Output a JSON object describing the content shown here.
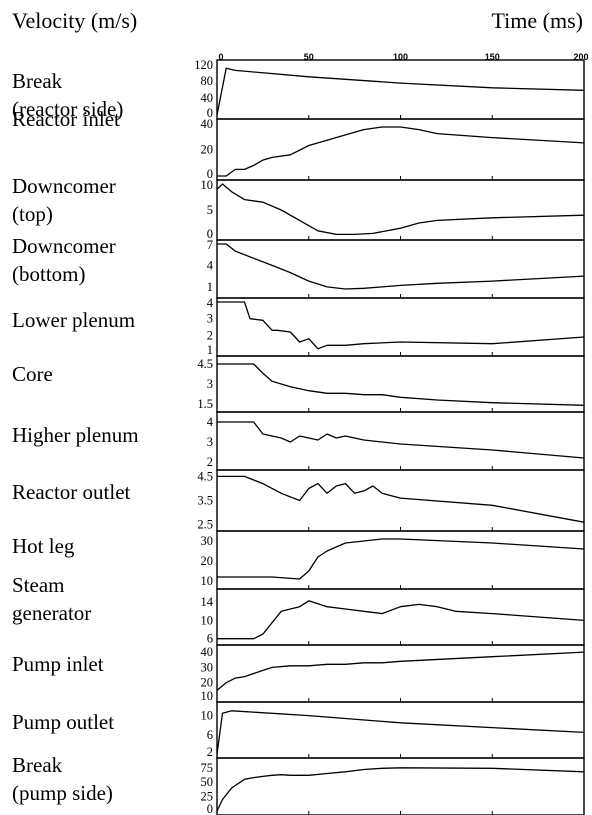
{
  "chart_data": {
    "type": "line",
    "y_header": "Velocity (m/s)",
    "x_header": "Time (ms)",
    "x_ticks": [
      0,
      50,
      100,
      150,
      200
    ],
    "xlim": [
      0,
      200
    ],
    "panels": [
      {
        "label": [
          "Break",
          "(reactor side)"
        ],
        "yticks": [
          "120",
          "80",
          "40",
          "0"
        ],
        "ylim": [
          0,
          120
        ],
        "x": [
          0,
          5,
          10,
          50,
          100,
          150,
          200
        ],
        "y": [
          0,
          110,
          105,
          90,
          75,
          64,
          58
        ]
      },
      {
        "label": [
          "Reactor inlet"
        ],
        "yticks": [
          "40",
          "20",
          "0"
        ],
        "ylim": [
          0,
          40
        ],
        "x": [
          0,
          5,
          10,
          15,
          20,
          25,
          30,
          40,
          50,
          60,
          70,
          80,
          90,
          100,
          110,
          120,
          150,
          200
        ],
        "y": [
          0,
          0,
          5,
          5,
          8,
          12,
          14,
          16,
          23,
          27,
          31,
          35,
          37,
          37,
          35,
          32,
          29,
          25
        ]
      },
      {
        "label": [
          "Downcomer",
          "(top)"
        ],
        "yticks": [
          "10",
          "5",
          "0"
        ],
        "ylim": [
          0,
          10
        ],
        "x": [
          0,
          3,
          8,
          15,
          25,
          35,
          45,
          55,
          65,
          75,
          85,
          100,
          110,
          120,
          150,
          200
        ],
        "y": [
          9,
          10,
          8.5,
          7,
          6.5,
          5,
          3,
          1,
          0.3,
          0.3,
          0.5,
          1.5,
          2.5,
          3,
          3.5,
          4
        ]
      },
      {
        "label": [
          "Downcomer",
          "(bottom)"
        ],
        "yticks": [
          "7",
          "4",
          "1"
        ],
        "ylim": [
          0,
          7
        ],
        "x": [
          0,
          5,
          10,
          20,
          30,
          40,
          50,
          60,
          70,
          80,
          90,
          100,
          120,
          150,
          200
        ],
        "y": [
          7,
          7,
          6,
          5,
          4,
          3,
          1.8,
          1,
          0.7,
          0.8,
          1,
          1.2,
          1.5,
          1.8,
          2.5
        ]
      },
      {
        "label": [
          "Lower plenum"
        ],
        "yticks": [
          "4",
          "3",
          "2",
          "1"
        ],
        "ylim": [
          1,
          4
        ],
        "x": [
          0,
          15,
          18,
          25,
          30,
          33,
          40,
          45,
          50,
          55,
          60,
          70,
          80,
          100,
          150,
          200
        ],
        "y": [
          4,
          4,
          3,
          2.9,
          2.3,
          2.3,
          2.2,
          1.6,
          1.8,
          1.2,
          1.4,
          1.4,
          1.5,
          1.6,
          1.5,
          1.9
        ]
      },
      {
        "label": [
          "Core"
        ],
        "yticks": [
          "4.5",
          "3",
          "1.5"
        ],
        "ylim": [
          1.2,
          4.8
        ],
        "x": [
          0,
          20,
          25,
          30,
          40,
          50,
          60,
          70,
          80,
          90,
          100,
          120,
          150,
          200
        ],
        "y": [
          4.5,
          4.5,
          3.8,
          3.2,
          2.8,
          2.5,
          2.3,
          2.3,
          2.2,
          2.2,
          2.0,
          1.8,
          1.6,
          1.4
        ]
      },
      {
        "label": [
          "Higher plenum"
        ],
        "yticks": [
          "4",
          "3",
          "2"
        ],
        "ylim": [
          1.8,
          4.3
        ],
        "x": [
          0,
          20,
          25,
          35,
          40,
          45,
          50,
          55,
          60,
          65,
          70,
          80,
          100,
          150,
          200
        ],
        "y": [
          4,
          4,
          3.4,
          3.2,
          3.0,
          3.3,
          3.2,
          3.1,
          3.4,
          3.2,
          3.3,
          3.1,
          2.9,
          2.6,
          2.2
        ]
      },
      {
        "label": [
          "Reactor outlet"
        ],
        "yticks": [
          "4.5",
          "3.5",
          "2.5"
        ],
        "ylim": [
          2.4,
          4.6
        ],
        "x": [
          0,
          15,
          25,
          35,
          45,
          50,
          55,
          60,
          65,
          70,
          75,
          80,
          85,
          90,
          95,
          100,
          150,
          200
        ],
        "y": [
          4.5,
          4.5,
          4.2,
          3.8,
          3.5,
          4.0,
          4.2,
          3.8,
          4.1,
          4.2,
          3.8,
          3.9,
          4.1,
          3.8,
          3.7,
          3.6,
          3.3,
          2.6
        ]
      },
      {
        "label": [
          "Hot leg"
        ],
        "yticks": [
          "30",
          "20",
          "10"
        ],
        "ylim": [
          8,
          33
        ],
        "x": [
          0,
          30,
          45,
          50,
          55,
          60,
          70,
          80,
          90,
          95,
          100,
          150,
          200
        ],
        "y": [
          12,
          12,
          11,
          15,
          22,
          25,
          29,
          30,
          31,
          31,
          31,
          29,
          26
        ]
      },
      {
        "label": [
          "Steam",
          "generator"
        ],
        "yticks": [
          "14",
          "10",
          "6"
        ],
        "ylim": [
          5.5,
          16
        ],
        "x": [
          0,
          20,
          25,
          35,
          40,
          45,
          50,
          60,
          70,
          80,
          90,
          100,
          110,
          120,
          130,
          150,
          200
        ],
        "y": [
          6,
          6,
          7,
          12,
          12.5,
          13,
          14.3,
          13,
          12.5,
          12,
          11.5,
          13,
          13.5,
          13,
          12,
          11.5,
          10
        ]
      },
      {
        "label": [
          "Pump inlet"
        ],
        "yticks": [
          "40",
          "30",
          "20",
          "10"
        ],
        "ylim": [
          10,
          42
        ],
        "x": [
          0,
          5,
          10,
          15,
          20,
          25,
          30,
          40,
          50,
          60,
          70,
          80,
          90,
          100,
          150,
          200
        ],
        "y": [
          15,
          20,
          23,
          24,
          26,
          28,
          30,
          31,
          31,
          32,
          32,
          33,
          33,
          34,
          37,
          40
        ]
      },
      {
        "label": [
          "Pump outlet"
        ],
        "yticks": [
          "10",
          "6",
          "2"
        ],
        "ylim": [
          2,
          12
        ],
        "x": [
          0,
          3,
          8,
          50,
          100,
          150,
          200
        ],
        "y": [
          2,
          10.5,
          11,
          10,
          8.5,
          7.5,
          6.5
        ]
      },
      {
        "label": [
          "Break",
          "(pump side)"
        ],
        "yticks": [
          "75",
          "50",
          "25",
          "0"
        ],
        "ylim": [
          0,
          85
        ],
        "x": [
          0,
          3,
          8,
          15,
          20,
          25,
          30,
          35,
          40,
          50,
          60,
          70,
          80,
          90,
          100,
          150,
          200
        ],
        "y": [
          0,
          20,
          40,
          55,
          58,
          60,
          62,
          63,
          62,
          62,
          65,
          68,
          72,
          74,
          75,
          74,
          68
        ]
      }
    ]
  }
}
